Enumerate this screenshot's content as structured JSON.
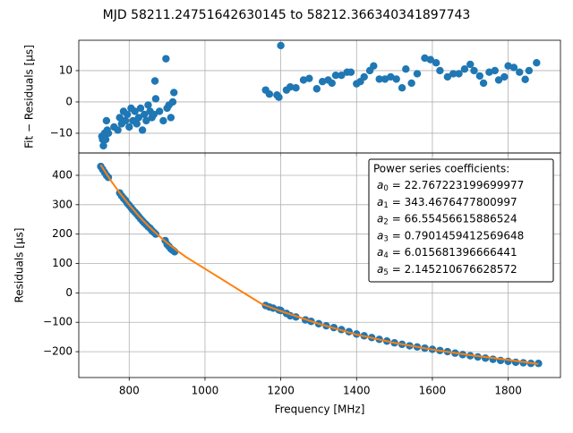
{
  "chart_data": [
    {
      "type": "scatter",
      "title": "MJD 58211.24751642630145 to 58212.366340341897743",
      "ylabel": "Fit − Residuals [μs]",
      "color": "#1f77b4",
      "grid": true,
      "show_xtick_labels": false,
      "xlim": [
        667,
        1938
      ],
      "ylim": [
        -16.3,
        19.7
      ],
      "xticks": [
        800,
        1000,
        1200,
        1400,
        1600,
        1800
      ],
      "yticks": [
        {
          "value": -10,
          "label": "−10"
        },
        0,
        10
      ],
      "x": [
        728,
        730,
        732,
        735,
        738,
        740,
        742,
        745,
        760,
        770,
        775,
        780,
        785,
        790,
        795,
        800,
        805,
        810,
        815,
        820,
        825,
        830,
        835,
        840,
        845,
        850,
        855,
        860,
        865,
        868,
        870,
        880,
        890,
        897,
        900,
        905,
        910,
        915,
        918,
        1160,
        1170,
        1190,
        1195,
        1200,
        1215,
        1225,
        1240,
        1260,
        1275,
        1295,
        1310,
        1325,
        1335,
        1345,
        1360,
        1375,
        1385,
        1400,
        1410,
        1420,
        1435,
        1445,
        1460,
        1475,
        1490,
        1505,
        1520,
        1530,
        1545,
        1560,
        1580,
        1595,
        1610,
        1620,
        1640,
        1655,
        1670,
        1685,
        1700,
        1710,
        1725,
        1735,
        1750,
        1765,
        1775,
        1790,
        1800,
        1815,
        1830,
        1845,
        1855,
        1875
      ],
      "y": [
        -11,
        -12,
        -14,
        -10,
        -12,
        -6,
        -9,
        -10,
        -8,
        -9,
        -5,
        -7,
        -3,
        -6,
        -4,
        -8,
        -2,
        -6,
        -3,
        -7,
        -5,
        -2,
        -9,
        -4,
        -6,
        -1,
        -3,
        -5,
        -4,
        6.7,
        1,
        -3,
        -6,
        13.8,
        -2,
        -1,
        -5,
        0,
        3,
        3.8,
        2.5,
        2.2,
        1.5,
        18,
        3.8,
        4.8,
        4.5,
        7,
        7.5,
        4.2,
        6.5,
        7,
        6,
        8.5,
        8.5,
        9.5,
        9.5,
        5.8,
        6.5,
        8,
        10,
        11.5,
        7.3,
        7.3,
        8,
        7.3,
        4.5,
        10.5,
        6,
        9,
        14,
        13.5,
        12.5,
        10,
        8,
        9,
        9,
        10.5,
        12,
        10,
        8.3,
        6,
        9.5,
        10,
        7,
        8,
        11.5,
        11,
        9.5,
        7.2,
        10,
        12.5
      ]
    },
    {
      "type": "scatter",
      "ylabel": "Residuals [μs]",
      "xlabel": "Frequency [MHz]",
      "color": "#1f77b4",
      "grid": true,
      "show_xtick_labels": true,
      "xlim": [
        667,
        1938
      ],
      "ylim": [
        -288,
        476
      ],
      "xticks": [
        800,
        1000,
        1200,
        1400,
        1600,
        1800
      ],
      "yticks": [
        {
          "value": -200,
          "label": "−200"
        },
        {
          "value": -100,
          "label": "−100"
        },
        0,
        100,
        200,
        300,
        400
      ],
      "x": [
        725,
        730,
        735,
        740,
        745,
        775,
        780,
        785,
        790,
        795,
        800,
        805,
        810,
        815,
        820,
        825,
        830,
        835,
        840,
        845,
        850,
        855,
        860,
        865,
        870,
        895,
        900,
        905,
        910,
        915,
        920,
        1160,
        1170,
        1180,
        1195,
        1200,
        1215,
        1225,
        1240,
        1265,
        1280,
        1300,
        1320,
        1340,
        1360,
        1380,
        1400,
        1420,
        1440,
        1460,
        1480,
        1500,
        1520,
        1540,
        1560,
        1580,
        1600,
        1620,
        1640,
        1660,
        1680,
        1700,
        1720,
        1740,
        1760,
        1780,
        1800,
        1820,
        1840,
        1860,
        1880
      ],
      "y": [
        430,
        420,
        410,
        400,
        393,
        340,
        330,
        322,
        315,
        305,
        298,
        290,
        282,
        275,
        268,
        260,
        252,
        245,
        238,
        232,
        225,
        220,
        212,
        206,
        200,
        178,
        165,
        158,
        150,
        145,
        140,
        -43,
        -48,
        -52,
        -58,
        -60,
        -70,
        -78,
        -82,
        -92,
        -97,
        -105,
        -112,
        -118,
        -125,
        -132,
        -140,
        -146,
        -152,
        -158,
        -164,
        -170,
        -175,
        -180,
        -184,
        -188,
        -192,
        -196,
        -200,
        -205,
        -210,
        -214,
        -218,
        -222,
        -226,
        -230,
        -233,
        -236,
        -238,
        -240,
        -240
      ],
      "fit": {
        "color": "#ff7f0e",
        "x": [
          725,
          750,
          775,
          800,
          825,
          850,
          875,
          900,
          925,
          950,
          1000,
          1050,
          1100,
          1150,
          1200,
          1300,
          1400,
          1500,
          1600,
          1700,
          1800,
          1880
        ],
        "y": [
          435,
          385,
          340,
          300,
          262,
          228,
          198,
          170,
          145,
          122,
          82,
          42,
          2,
          -38,
          -62,
          -105,
          -142,
          -170,
          -193,
          -212,
          -228,
          -242
        ]
      },
      "legend": {
        "corner": "upper right",
        "title": "Power series coefficients:",
        "entries": [
          {
            "symbol": "a",
            "subscript": "0",
            "text": "= 22.767223199699977"
          },
          {
            "symbol": "a",
            "subscript": "1",
            "text": "= 343.4676477800997"
          },
          {
            "symbol": "a",
            "subscript": "2",
            "text": "= 66.55456615886524"
          },
          {
            "symbol": "a",
            "subscript": "3",
            "text": "= 0.7901459412569648"
          },
          {
            "symbol": "a",
            "subscript": "4",
            "text": "= 6.015681396666441"
          },
          {
            "symbol": "a",
            "subscript": "5",
            "text": "= 2.145210676628572"
          }
        ]
      }
    }
  ]
}
